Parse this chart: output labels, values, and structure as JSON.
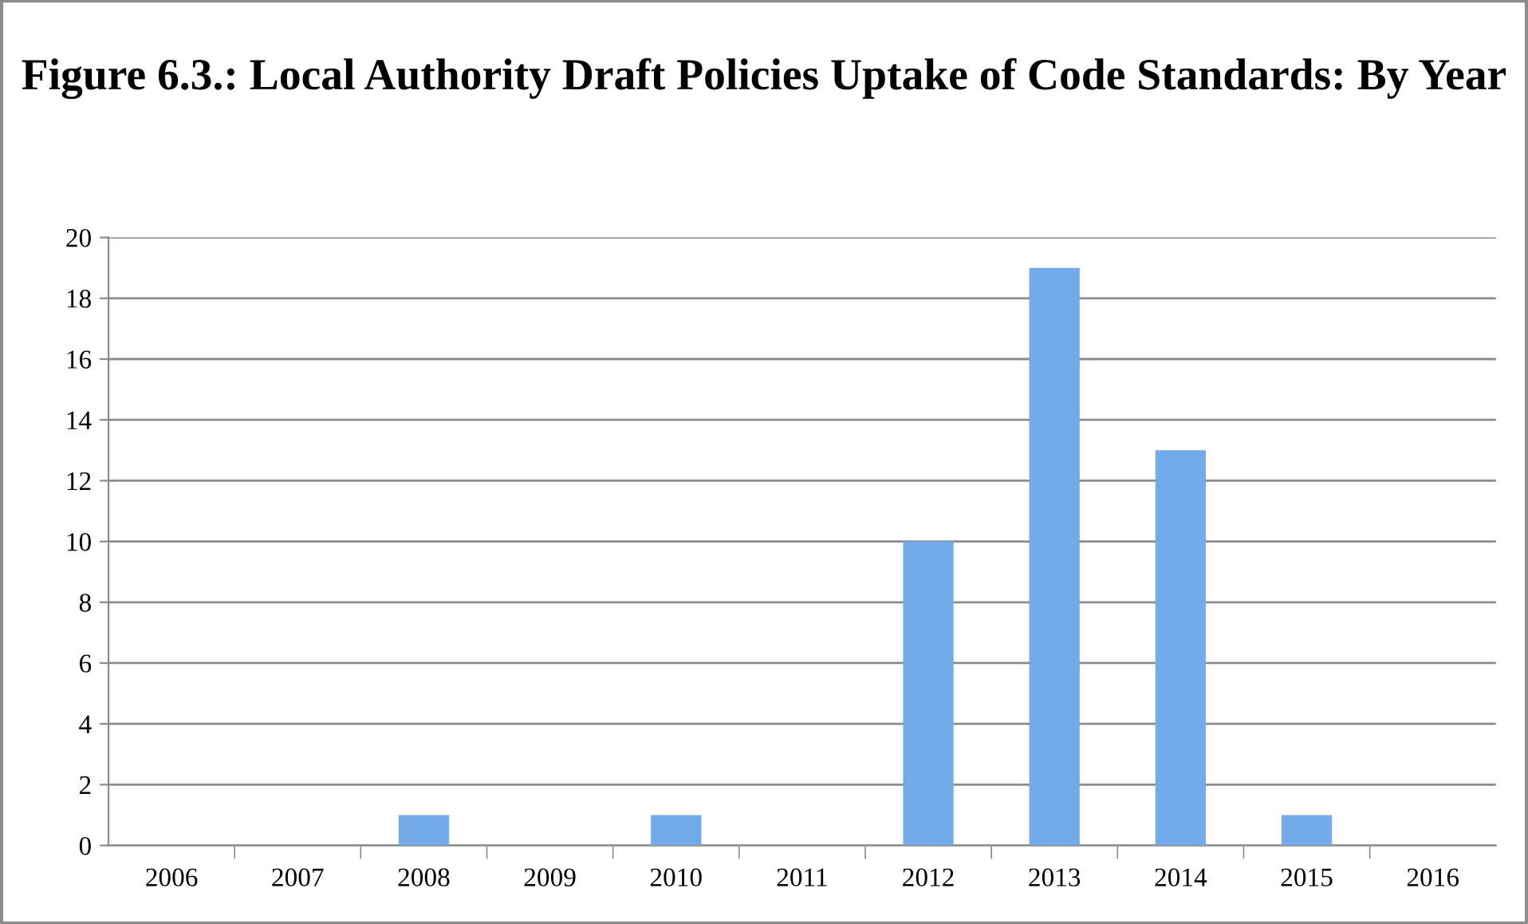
{
  "chart_data": {
    "type": "bar",
    "title": "Figure 6.3.: Local Authority Draft Policies Uptake of Code Standards: By Year",
    "categories": [
      "2006",
      "2007",
      "2008",
      "2009",
      "2010",
      "2011",
      "2012",
      "2013",
      "2014",
      "2015",
      "2016"
    ],
    "values": [
      0,
      0,
      1,
      0,
      1,
      0,
      10,
      19,
      13,
      1,
      0
    ],
    "color": "#72aaea",
    "ylim": [
      0,
      20
    ],
    "yticks": [
      0,
      2,
      4,
      6,
      8,
      10,
      12,
      14,
      16,
      18,
      20
    ],
    "grid": "y",
    "legend": false
  }
}
